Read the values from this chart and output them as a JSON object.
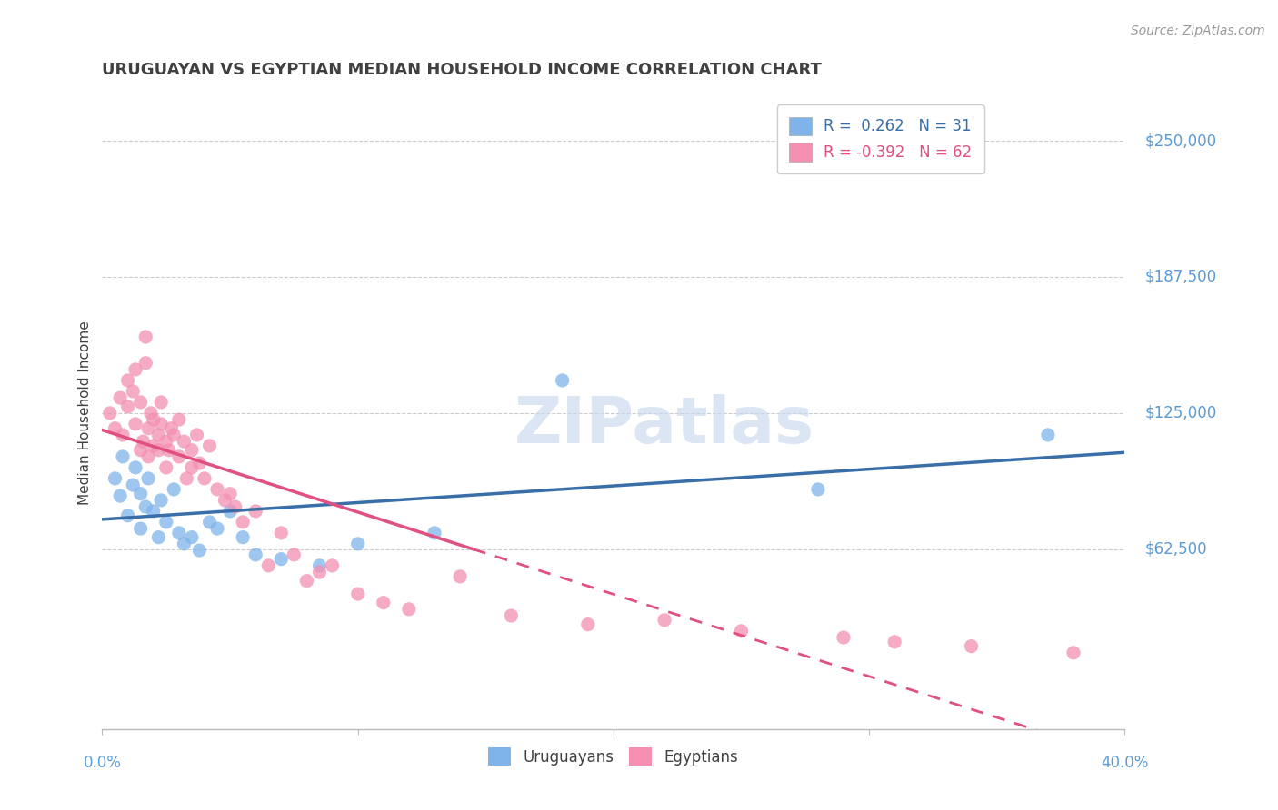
{
  "title": "URUGUAYAN VS EGYPTIAN MEDIAN HOUSEHOLD INCOME CORRELATION CHART",
  "source": "Source: ZipAtlas.com",
  "ylabel": "Median Household Income",
  "xlim": [
    0.0,
    0.4
  ],
  "ylim": [
    -20000,
    270000
  ],
  "watermark": "ZIPatlas",
  "legend_blue_r": "R =  0.262",
  "legend_blue_n": "N = 31",
  "legend_pink_r": "R = -0.392",
  "legend_pink_n": "N = 62",
  "blue_color": "#7EB4EA",
  "pink_color": "#F48FB1",
  "blue_line_color": "#3A6EA8",
  "pink_line_color": "#E05080",
  "grid_color": "#CCCCCC",
  "background_color": "#FFFFFF",
  "title_color": "#404040",
  "axis_label_color": "#5B9BD5",
  "uruguayan_x": [
    0.005,
    0.007,
    0.008,
    0.01,
    0.012,
    0.013,
    0.015,
    0.015,
    0.017,
    0.018,
    0.02,
    0.022,
    0.023,
    0.025,
    0.028,
    0.03,
    0.032,
    0.035,
    0.038,
    0.042,
    0.045,
    0.05,
    0.055,
    0.06,
    0.07,
    0.085,
    0.1,
    0.13,
    0.18,
    0.28,
    0.37
  ],
  "uruguayan_y": [
    95000,
    87000,
    105000,
    78000,
    92000,
    100000,
    88000,
    72000,
    82000,
    95000,
    80000,
    68000,
    85000,
    75000,
    90000,
    70000,
    65000,
    68000,
    62000,
    75000,
    72000,
    80000,
    68000,
    60000,
    58000,
    55000,
    65000,
    70000,
    140000,
    90000,
    115000
  ],
  "egyptian_x": [
    0.003,
    0.005,
    0.007,
    0.008,
    0.01,
    0.01,
    0.012,
    0.013,
    0.013,
    0.015,
    0.015,
    0.016,
    0.017,
    0.017,
    0.018,
    0.018,
    0.019,
    0.02,
    0.02,
    0.022,
    0.022,
    0.023,
    0.023,
    0.025,
    0.025,
    0.026,
    0.027,
    0.028,
    0.03,
    0.03,
    0.032,
    0.033,
    0.035,
    0.035,
    0.037,
    0.038,
    0.04,
    0.042,
    0.045,
    0.048,
    0.05,
    0.052,
    0.055,
    0.06,
    0.065,
    0.07,
    0.075,
    0.08,
    0.085,
    0.09,
    0.1,
    0.11,
    0.12,
    0.14,
    0.16,
    0.19,
    0.22,
    0.25,
    0.29,
    0.31,
    0.34,
    0.38
  ],
  "egyptian_y": [
    125000,
    118000,
    132000,
    115000,
    140000,
    128000,
    135000,
    120000,
    145000,
    108000,
    130000,
    112000,
    160000,
    148000,
    105000,
    118000,
    125000,
    110000,
    122000,
    115000,
    108000,
    120000,
    130000,
    112000,
    100000,
    108000,
    118000,
    115000,
    122000,
    105000,
    112000,
    95000,
    100000,
    108000,
    115000,
    102000,
    95000,
    110000,
    90000,
    85000,
    88000,
    82000,
    75000,
    80000,
    55000,
    70000,
    60000,
    48000,
    52000,
    55000,
    42000,
    38000,
    35000,
    50000,
    32000,
    28000,
    30000,
    25000,
    22000,
    20000,
    18000,
    15000
  ]
}
